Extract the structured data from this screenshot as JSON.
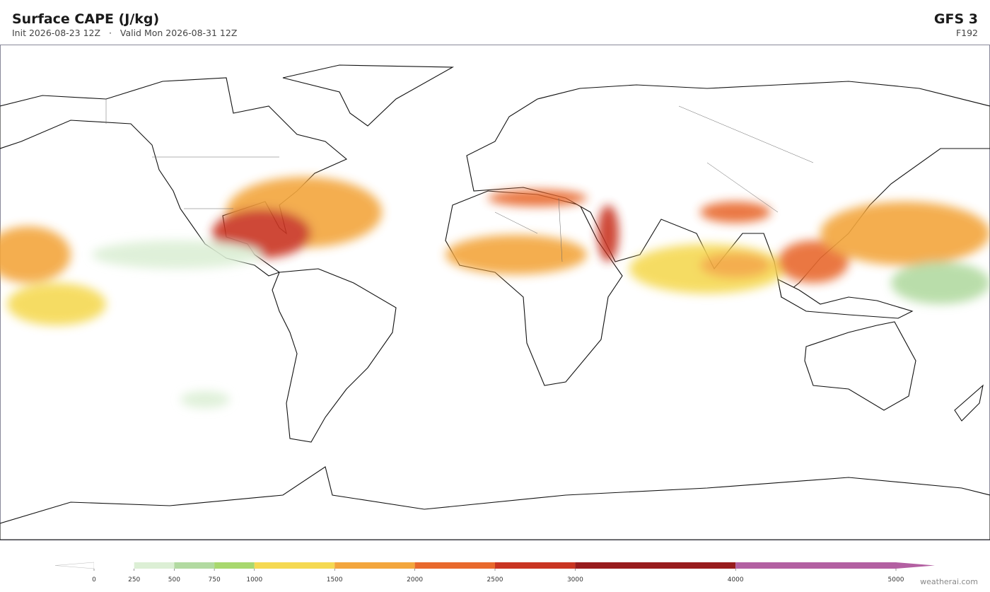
{
  "header": {
    "title": "Surface CAPE  (J/kg)",
    "init": "Init 2026-08-23 12Z",
    "separator": "·",
    "valid": "Valid Mon 2026-08-31 12Z",
    "model": "GFS 3",
    "forecast_hour": "F192"
  },
  "colorbar": {
    "lim": [
      0,
      5000
    ],
    "ticks": [
      0,
      250,
      500,
      750,
      1000,
      1500,
      2000,
      2500,
      3000,
      4000,
      5000
    ],
    "bounds": [
      0,
      250,
      500,
      750,
      1000,
      1500,
      2000,
      2500,
      3000,
      4000,
      5000
    ],
    "colors": [
      "#ffffff",
      "#dcefd5",
      "#b2daa1",
      "#a8d86e",
      "#f5d952",
      "#f3a63d",
      "#e8692d",
      "#c93522",
      "#981c1e",
      "#b360a2"
    ]
  },
  "watermark": "weatherai.com"
}
